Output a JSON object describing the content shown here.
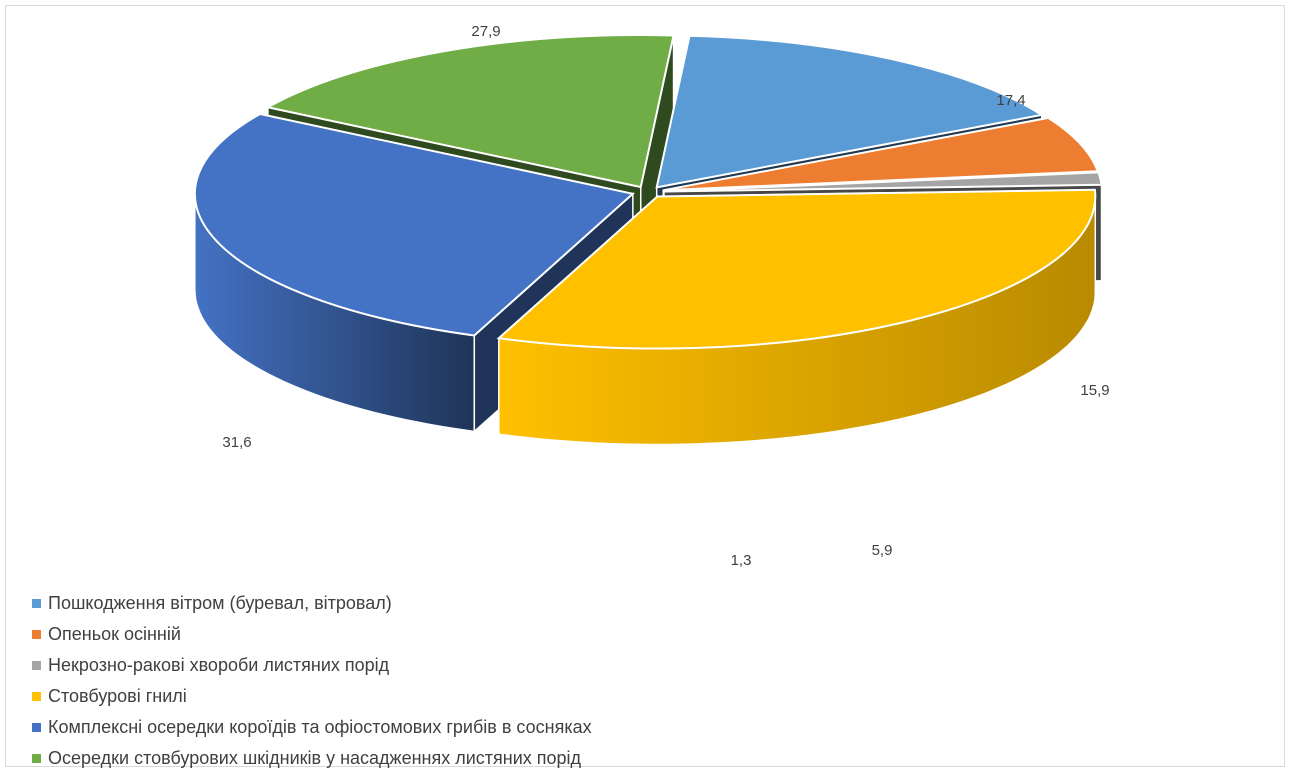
{
  "chart_data": {
    "type": "pie",
    "style": "3d-exploded",
    "slices": [
      {
        "label": "Пошкодження вітром (буревал, вітровал)",
        "value": 15.9,
        "value_label": "15,9",
        "color": "#5B9BD5",
        "side_color": "#213A52"
      },
      {
        "label": "Опеньок осінній",
        "value": 5.9,
        "value_label": "5,9",
        "color": "#ED7D31",
        "side_color": "#6E3510"
      },
      {
        "label": "Некрозно-ракові хвороби листяних порід",
        "value": 1.3,
        "value_label": "1,3",
        "color": "#A5A5A5",
        "side_color": "#474747"
      },
      {
        "label": "Стовбурові гнилі",
        "value": 31.6,
        "value_label": "31,6",
        "color": "#FFC000",
        "side_color": "#B88A00"
      },
      {
        "label": "Комплексні осередки короїдів та офіостомових грибів в сосняках",
        "value": 27.9,
        "value_label": "27,9",
        "color": "#4472C4",
        "side_color": "#1F3458"
      },
      {
        "label": "Осередки стовбурових шкідників у насадженнях листяних порід",
        "value": 17.4,
        "value_label": "17,4",
        "color": "#70AD47",
        "side_color": "#2F4A1E"
      }
    ],
    "legend_position": "bottom-left"
  }
}
